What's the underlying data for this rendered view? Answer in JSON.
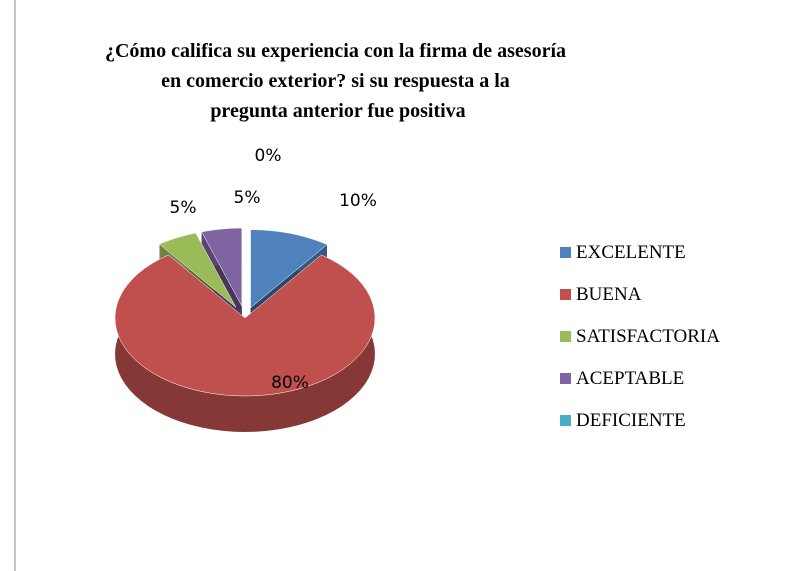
{
  "chart_data": {
    "type": "pie3d",
    "title": "¿Cómo califica su experiencia con la firma de asesoría en comercio exterior? si su respuesta a la pregunta anterior fue positiva",
    "categories": [
      "EXCELENTE",
      "BUENA",
      "SATISFACTORIA",
      "ACEPTABLE",
      "DEFICIENTE"
    ],
    "values": [
      10,
      80,
      5,
      5,
      0
    ],
    "value_labels": [
      "10%",
      "80%",
      "5%",
      "5%",
      "0%"
    ],
    "colors": [
      "#4f81bd",
      "#c0504d",
      "#9bbb59",
      "#8064a2",
      "#4bacc6"
    ],
    "legend": "right"
  }
}
